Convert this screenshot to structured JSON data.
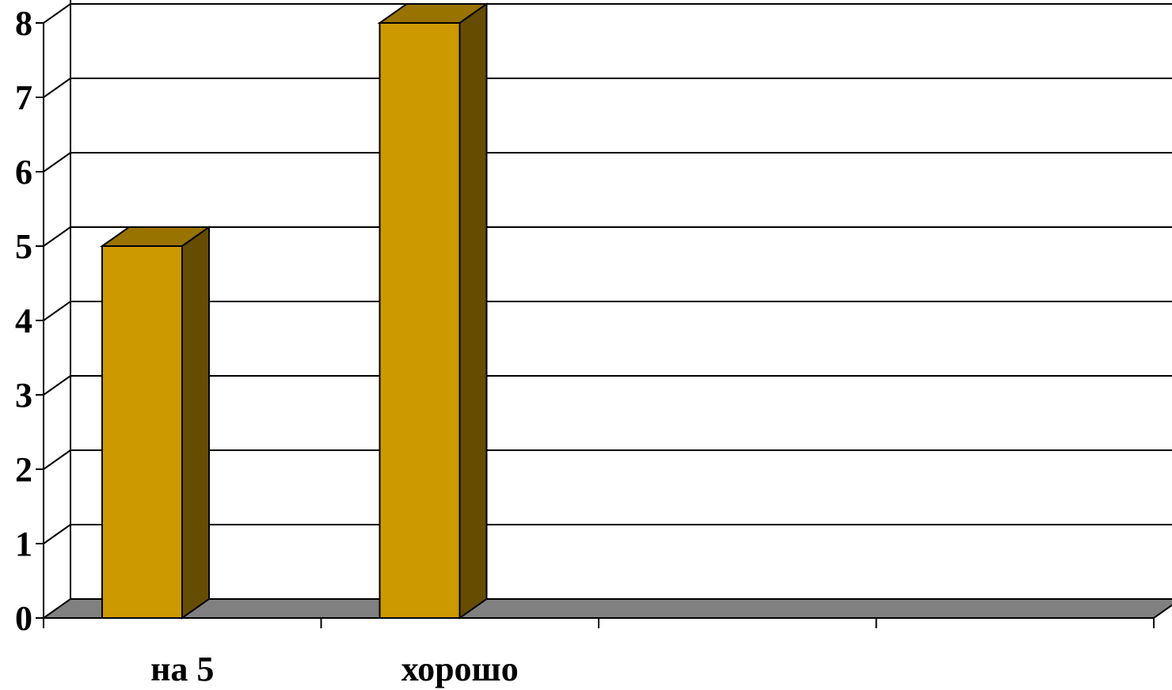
{
  "chart_data": {
    "type": "bar",
    "title": "",
    "xlabel": "",
    "ylabel": "",
    "categories": [
      "на 5",
      "хорошо",
      "",
      ""
    ],
    "values": [
      5,
      8,
      0,
      0
    ],
    "ylim": [
      0,
      8
    ],
    "yticks": [
      "0",
      "1",
      "2",
      "3",
      "4",
      "5",
      "6",
      "7",
      "8"
    ],
    "grid": true,
    "legend": "none",
    "three_d": true,
    "colors": {
      "bar_front": "#CC9900",
      "bar_top": "#997300",
      "bar_side": "#664C00",
      "floor": "#808080",
      "background": "#FFFFFF",
      "lines": "#000000"
    }
  }
}
